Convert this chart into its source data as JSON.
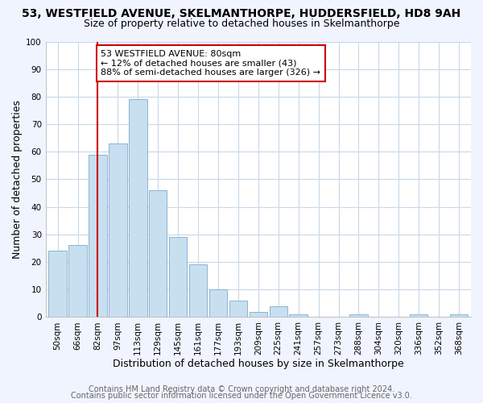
{
  "title": "53, WESTFIELD AVENUE, SKELMANTHORPE, HUDDERSFIELD, HD8 9AH",
  "subtitle": "Size of property relative to detached houses in Skelmanthorpe",
  "xlabel": "Distribution of detached houses by size in Skelmanthorpe",
  "ylabel": "Number of detached properties",
  "bar_labels": [
    "50sqm",
    "66sqm",
    "82sqm",
    "97sqm",
    "113sqm",
    "129sqm",
    "145sqm",
    "161sqm",
    "177sqm",
    "193sqm",
    "209sqm",
    "225sqm",
    "241sqm",
    "257sqm",
    "273sqm",
    "288sqm",
    "304sqm",
    "320sqm",
    "336sqm",
    "352sqm",
    "368sqm"
  ],
  "bar_heights": [
    24,
    26,
    59,
    63,
    79,
    46,
    29,
    19,
    10,
    6,
    2,
    4,
    1,
    0,
    0,
    1,
    0,
    0,
    1,
    0,
    1
  ],
  "bar_color": "#c8dff0",
  "bar_edge_color": "#8ab4d4",
  "vline_x_index": 2,
  "vline_color": "#cc0000",
  "ylim": [
    0,
    100
  ],
  "annotation_text": "53 WESTFIELD AVENUE: 80sqm\n← 12% of detached houses are smaller (43)\n88% of semi-detached houses are larger (326) →",
  "annotation_box_color": "#ffffff",
  "annotation_box_edge": "#cc0000",
  "footer_line1": "Contains HM Land Registry data © Crown copyright and database right 2024.",
  "footer_line2": "Contains public sector information licensed under the Open Government Licence v3.0.",
  "plot_bg_color": "#ffffff",
  "fig_bg_color": "#f0f4ff",
  "grid_color": "#c8d8e8",
  "title_fontsize": 10,
  "subtitle_fontsize": 9,
  "axis_label_fontsize": 9,
  "tick_fontsize": 7.5,
  "footer_fontsize": 7,
  "annotation_fontsize": 8
}
